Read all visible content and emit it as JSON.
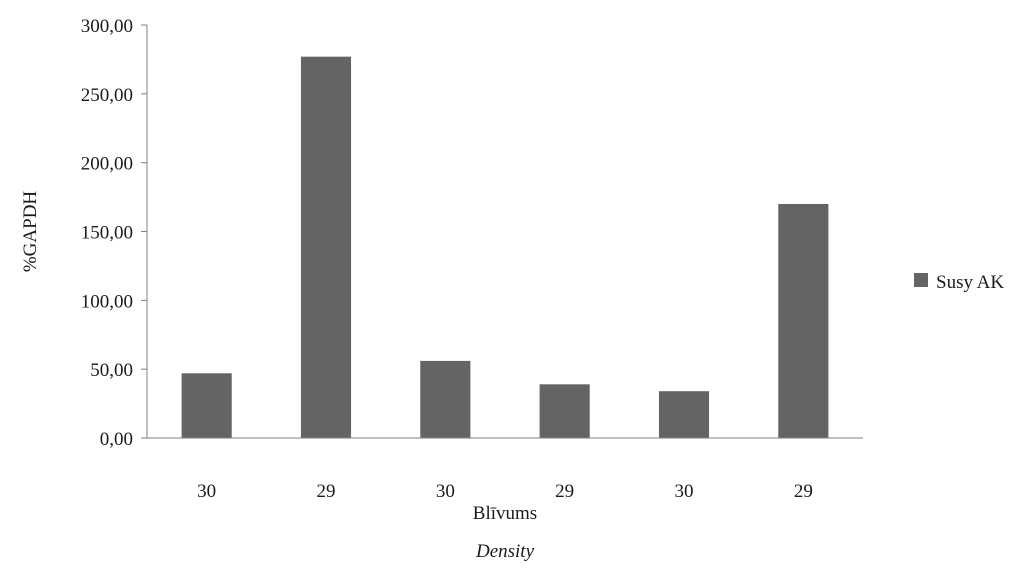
{
  "chart_data": {
    "type": "bar",
    "title": "",
    "categories": [
      "30",
      "29",
      "30",
      "29",
      "30",
      "29"
    ],
    "series": [
      {
        "name": "Susy AK",
        "values": [
          47,
          277,
          56,
          39,
          34,
          170
        ]
      }
    ],
    "xlabel": "Blīvums",
    "xlabel_translation": "Density",
    "ylabel": "%GAPDH",
    "ylim": [
      0,
      300
    ],
    "yticks": [
      0,
      50,
      100,
      150,
      200,
      250,
      300
    ],
    "ytick_labels": [
      "0,00",
      "50,00",
      "100,00",
      "150,00",
      "200,00",
      "250,00",
      "300,00"
    ],
    "grid": false,
    "legend_position": "right",
    "bar_color": "#646464"
  }
}
